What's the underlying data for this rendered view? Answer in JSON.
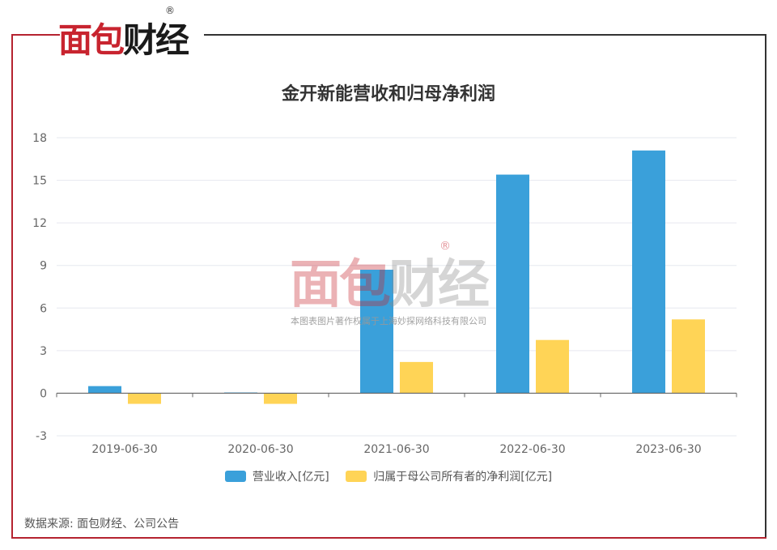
{
  "brand": {
    "logo_text_red": "面包",
    "logo_text_dark": "财经",
    "logo_reg": "®",
    "watermark_text_red": "面包",
    "watermark_text_dark": "财经",
    "watermark_caption": "本图表图片著作权属于上海妙探网络科技有限公司"
  },
  "source_note": "数据来源: 面包财经、公司公告",
  "colors": {
    "revenue": "#3aa0da",
    "profit": "#ffd456",
    "frame_red": "#b52330",
    "grid": "#e6e8ef"
  },
  "chart_data": {
    "type": "bar",
    "title": "金开新能营收和归母净利润",
    "categories": [
      "2019-06-30",
      "2020-06-30",
      "2021-06-30",
      "2022-06-30",
      "2023-06-30"
    ],
    "series": [
      {
        "name": "营业收入[亿元]",
        "values": [
          0.5,
          0.05,
          8.7,
          15.4,
          17.1
        ]
      },
      {
        "name": "归属于母公司所有者的净利润[亿元]",
        "values": [
          -0.75,
          -0.75,
          2.2,
          3.75,
          5.2
        ]
      }
    ],
    "ylim": [
      -3,
      18
    ],
    "yticks": [
      "-3",
      "0",
      "3",
      "6",
      "9",
      "12",
      "15",
      "18"
    ],
    "grid": true,
    "legend": "bottom"
  }
}
